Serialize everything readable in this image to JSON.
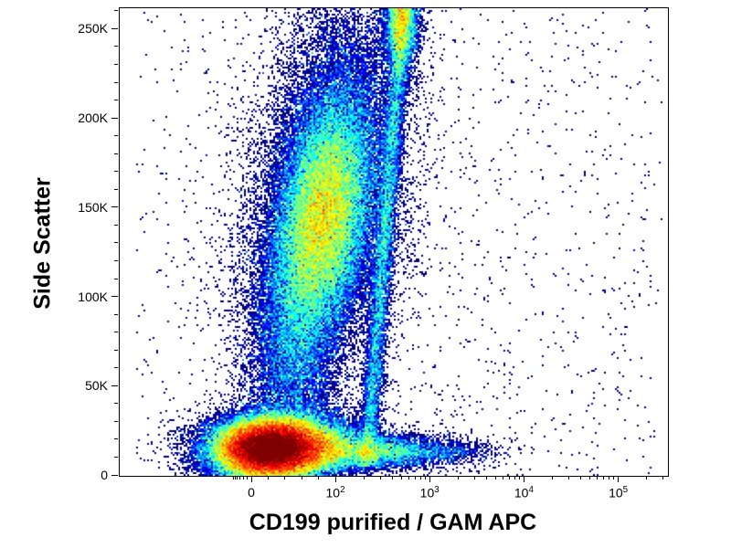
{
  "chart_data": {
    "type": "scatter",
    "subtype": "flow-cytometry-pseudocolor-density",
    "title": "",
    "xlabel": "CD199 purified / GAM APC",
    "ylabel": "Side Scatter",
    "x_scale": "biexponential",
    "y_scale": "linear",
    "colormap": "jet",
    "background": "#ffffff",
    "x_ticks": [
      "0",
      "10^2",
      "10^3",
      "10^4",
      "10^5"
    ],
    "y_ticks": [
      "0",
      "50K",
      "100K",
      "150K",
      "200K",
      "250K"
    ],
    "x_axis": {
      "major_ticks": [
        {
          "label": "0",
          "u": 0.2417
        },
        {
          "label": "10^2",
          "u": 0.395
        },
        {
          "label": "10^3",
          "u": 0.567
        },
        {
          "label": "10^4",
          "u": 0.739
        },
        {
          "label": "10^5",
          "u": 0.911
        }
      ],
      "minor_u": [
        0.2337,
        0.2267,
        0.2207,
        0.2157,
        0.2117,
        0.2087,
        0.2724,
        0.303,
        0.3337,
        0.3643,
        0.4468,
        0.477,
        0.4985,
        0.5152,
        0.5288,
        0.5403,
        0.5503,
        0.5591,
        0.6188,
        0.649,
        0.6705,
        0.6872,
        0.7008,
        0.7123,
        0.7223,
        0.7311,
        0.7908,
        0.821,
        0.8425,
        0.8592,
        0.8728,
        0.8843,
        0.8943,
        0.9031,
        0.9628,
        0.993
      ]
    },
    "y_axis": {
      "max": 262000,
      "major_ticks": [
        {
          "label": "0",
          "value": 0
        },
        {
          "label": "50K",
          "value": 50000
        },
        {
          "label": "100K",
          "value": 100000
        },
        {
          "label": "150K",
          "value": 150000
        },
        {
          "label": "200K",
          "value": 200000
        },
        {
          "label": "250K",
          "value": 250000
        }
      ],
      "minor_step": 10000
    },
    "density_cap": 55,
    "seed": 1337,
    "clusters": [
      {
        "name": "background-sparse",
        "type": "uniform",
        "u1": 0.03,
        "v1": 0.0,
        "u2": 0.99,
        "v2": 1.0,
        "n": 1100
      },
      {
        "name": "right-side-sparse",
        "type": "uniform",
        "u1": 0.45,
        "v1": 0.0,
        "u2": 0.97,
        "v2": 1.0,
        "n": 220
      },
      {
        "name": "lymphocytes-core",
        "type": "gauss",
        "u": 0.272,
        "v": 0.058,
        "su": 0.048,
        "sv": 0.032,
        "rho": 0.0,
        "n": 52000
      },
      {
        "name": "lymphocytes-right",
        "type": "gauss",
        "u": 0.34,
        "v": 0.066,
        "su": 0.055,
        "sv": 0.034,
        "rho": 0.0,
        "n": 13000
      },
      {
        "name": "debris-left",
        "type": "gauss",
        "u": 0.215,
        "v": 0.05,
        "su": 0.055,
        "sv": 0.038,
        "rho": 0.0,
        "n": 2600
      },
      {
        "name": "monocyte-bridge",
        "type": "gauss",
        "u": 0.315,
        "v": 0.26,
        "su": 0.042,
        "sv": 0.13,
        "rho": 0.1,
        "n": 8500
      },
      {
        "name": "granulocytes",
        "type": "gauss",
        "u": 0.372,
        "v": 0.555,
        "su": 0.047,
        "sv": 0.132,
        "rho": 0.32,
        "n": 42000
      },
      {
        "name": "granulocytes-halo",
        "type": "gauss",
        "u": 0.372,
        "v": 0.56,
        "su": 0.085,
        "sv": 0.21,
        "rho": 0.2,
        "n": 7500
      },
      {
        "name": "upper-cloud",
        "type": "gauss",
        "u": 0.405,
        "v": 0.83,
        "su": 0.055,
        "sv": 0.12,
        "rho": 0.1,
        "n": 3800
      },
      {
        "name": "doublet-streak",
        "type": "band",
        "u1": 0.45,
        "v1": 0.02,
        "u2": 0.518,
        "v2": 1.02,
        "sigma": 0.0095,
        "n": 9500
      },
      {
        "name": "streak-top",
        "type": "gauss",
        "u": 0.513,
        "v": 0.975,
        "su": 0.016,
        "sv": 0.055,
        "rho": 0.0,
        "n": 5200
      },
      {
        "name": "bottom-right-tail",
        "type": "gauss",
        "u": 0.465,
        "v": 0.052,
        "su": 0.07,
        "sv": 0.018,
        "rho": 0.0,
        "n": 5200
      },
      {
        "name": "bottom-far-tail",
        "type": "gauss",
        "u": 0.585,
        "v": 0.052,
        "su": 0.055,
        "sv": 0.014,
        "rho": 0.0,
        "n": 700
      }
    ]
  }
}
